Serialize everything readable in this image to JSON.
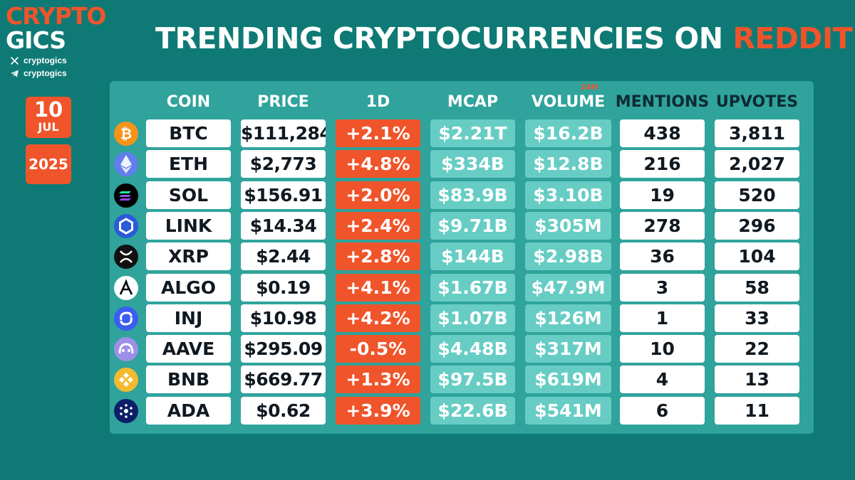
{
  "brand": {
    "line1": "CRYPTO",
    "line2": "GICS",
    "x_handle": "cryptogics",
    "telegram_handle": "cryptogics"
  },
  "date": {
    "day": "10",
    "month": "JUL",
    "year": "2025"
  },
  "title": {
    "main": "TRENDING CRYPTOCURRENCIES ON ",
    "accent": "REDDIT"
  },
  "table": {
    "headers": {
      "coin": "COIN",
      "price": "PRICE",
      "change": "1D",
      "mcap": "MCAP",
      "volume": "VOLUME",
      "volume_badge": "24H",
      "mentions": "MENTIONS",
      "upvotes": "UPVOTES"
    },
    "rows": [
      {
        "icon": "bitcoin-icon",
        "coin": "BTC",
        "price": "$111,284",
        "change": "+2.1%",
        "mcap": "$2.21T",
        "volume": "$16.2B",
        "mentions": "438",
        "upvotes": "3,811"
      },
      {
        "icon": "ethereum-icon",
        "coin": "ETH",
        "price": "$2,773",
        "change": "+4.8%",
        "mcap": "$334B",
        "volume": "$12.8B",
        "mentions": "216",
        "upvotes": "2,027"
      },
      {
        "icon": "solana-icon",
        "coin": "SOL",
        "price": "$156.91",
        "change": "+2.0%",
        "mcap": "$83.9B",
        "volume": "$3.10B",
        "mentions": "19",
        "upvotes": "520"
      },
      {
        "icon": "chainlink-icon",
        "coin": "LINK",
        "price": "$14.34",
        "change": "+2.4%",
        "mcap": "$9.71B",
        "volume": "$305M",
        "mentions": "278",
        "upvotes": "296"
      },
      {
        "icon": "xrp-icon",
        "coin": "XRP",
        "price": "$2.44",
        "change": "+2.8%",
        "mcap": "$144B",
        "volume": "$2.98B",
        "mentions": "36",
        "upvotes": "104"
      },
      {
        "icon": "algorand-icon",
        "coin": "ALGO",
        "price": "$0.19",
        "change": "+4.1%",
        "mcap": "$1.67B",
        "volume": "$47.9M",
        "mentions": "3",
        "upvotes": "58"
      },
      {
        "icon": "injective-icon",
        "coin": "INJ",
        "price": "$10.98",
        "change": "+4.2%",
        "mcap": "$1.07B",
        "volume": "$126M",
        "mentions": "1",
        "upvotes": "33"
      },
      {
        "icon": "aave-icon",
        "coin": "AAVE",
        "price": "$295.09",
        "change": "-0.5%",
        "mcap": "$4.48B",
        "volume": "$317M",
        "mentions": "10",
        "upvotes": "22"
      },
      {
        "icon": "bnb-icon",
        "coin": "BNB",
        "price": "$669.77",
        "change": "+1.3%",
        "mcap": "$97.5B",
        "volume": "$619M",
        "mentions": "4",
        "upvotes": "13"
      },
      {
        "icon": "cardano-icon",
        "coin": "ADA",
        "price": "$0.62",
        "change": "+3.9%",
        "mcap": "$22.6B",
        "volume": "$541M",
        "mentions": "6",
        "upvotes": "11"
      }
    ]
  },
  "colors": {
    "background": "#0f7a75",
    "panel": "#2fa39c",
    "accent": "#f0542a",
    "teal_cell": "#67cdc4"
  }
}
